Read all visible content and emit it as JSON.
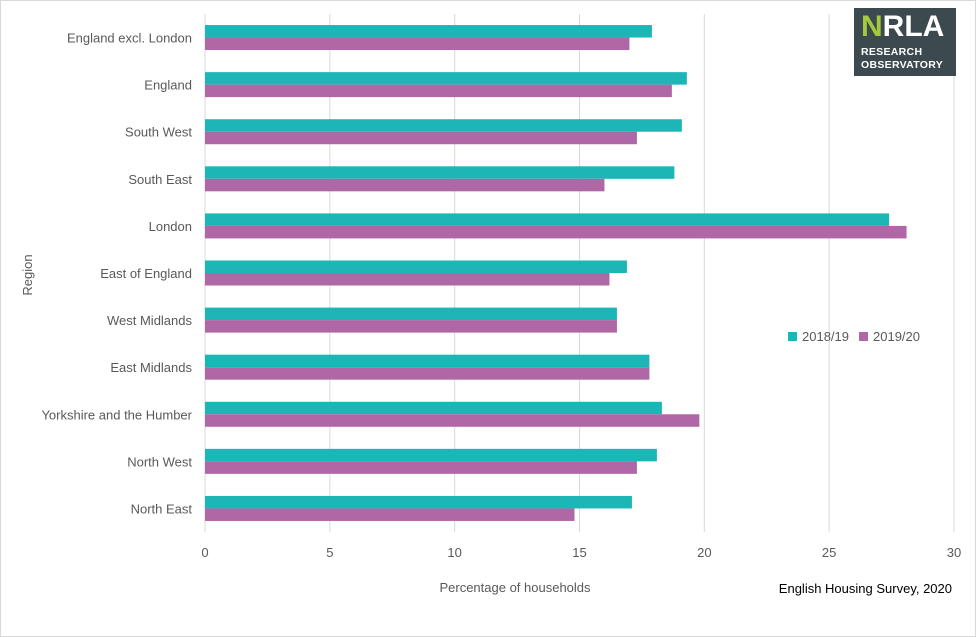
{
  "chart_data": {
    "type": "bar",
    "orientation": "horizontal",
    "categories": [
      "England excl. London",
      "England",
      "South West",
      "South East",
      "London",
      "East of England",
      "West Midlands",
      "East Midlands",
      "Yorkshire and the Humber",
      "North West",
      "North East"
    ],
    "series": [
      {
        "name": "2018/19",
        "color": "#1db6b6",
        "values": [
          17.9,
          19.3,
          19.1,
          18.8,
          27.4,
          16.9,
          16.5,
          17.8,
          18.3,
          18.1,
          17.1
        ]
      },
      {
        "name": "2019/20",
        "color": "#b067a6",
        "values": [
          17.0,
          18.7,
          17.3,
          16.0,
          28.1,
          16.2,
          16.5,
          17.8,
          19.8,
          17.3,
          14.8
        ]
      }
    ],
    "xlabel": "Percentage of households",
    "ylabel": "Region",
    "xlim": [
      0,
      30
    ],
    "xticks": [
      "0",
      "5",
      "10",
      "15",
      "20",
      "25",
      "30"
    ],
    "grid": "vertical",
    "legend_position": "right"
  },
  "source": "English Housing Survey, 2020",
  "logo": {
    "mark": "NRLA",
    "line1": "RESEARCH",
    "line2": "OBSERVATORY"
  }
}
